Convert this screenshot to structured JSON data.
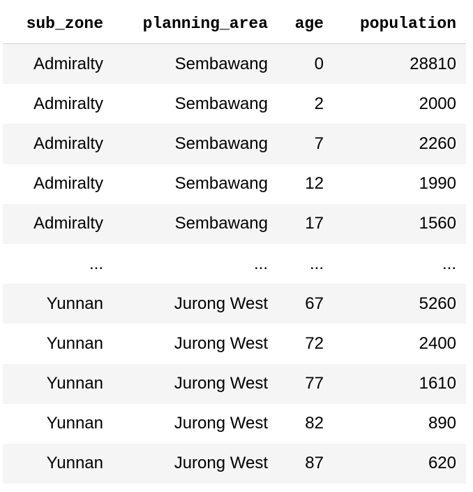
{
  "table": {
    "columns": [
      "sub_zone",
      "planning_area",
      "age",
      "population"
    ],
    "rows": [
      [
        "Admiralty",
        "Sembawang",
        "0",
        "28810"
      ],
      [
        "Admiralty",
        "Sembawang",
        "2",
        "2000"
      ],
      [
        "Admiralty",
        "Sembawang",
        "7",
        "2260"
      ],
      [
        "Admiralty",
        "Sembawang",
        "12",
        "1990"
      ],
      [
        "Admiralty",
        "Sembawang",
        "17",
        "1560"
      ],
      [
        "...",
        "...",
        "...",
        "..."
      ],
      [
        "Yunnan",
        "Jurong West",
        "67",
        "5260"
      ],
      [
        "Yunnan",
        "Jurong West",
        "72",
        "2400"
      ],
      [
        "Yunnan",
        "Jurong West",
        "77",
        "1610"
      ],
      [
        "Yunnan",
        "Jurong West",
        "82",
        "890"
      ],
      [
        "Yunnan",
        "Jurong West",
        "87",
        "620"
      ]
    ]
  }
}
